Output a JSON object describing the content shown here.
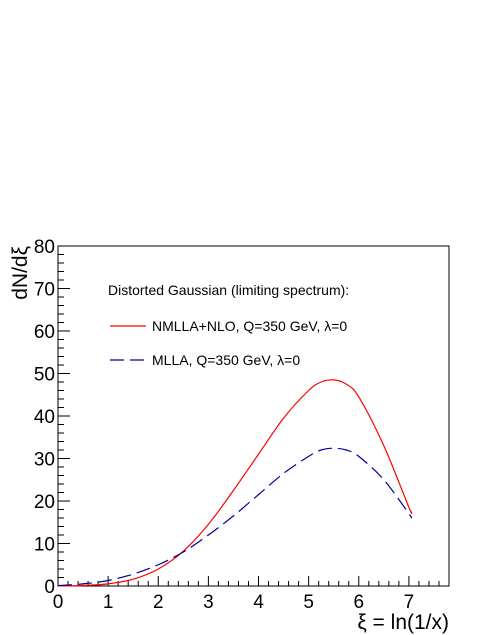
{
  "chart_data": {
    "type": "line",
    "xlabel": "ξ = ln(1/x)",
    "ylabel": "dN/dξ",
    "xlim": [
      0,
      7.8
    ],
    "ylim": [
      0,
      80
    ],
    "x_ticks": [
      "0",
      "1",
      "2",
      "3",
      "4",
      "5",
      "6",
      "7"
    ],
    "y_ticks": [
      "0",
      "10",
      "20",
      "30",
      "40",
      "50",
      "60",
      "70",
      "80"
    ],
    "grid": false,
    "legend_title": "Distorted Gaussian (limiting spectrum):",
    "legend_position": "top-left",
    "series": [
      {
        "name": "NMLLA+NLO, Q=350 GeV, λ=0",
        "color": "#ff0000",
        "line_style": "solid",
        "x": [
          0,
          0.5,
          1.0,
          1.5,
          2.0,
          2.5,
          3.0,
          3.5,
          4.0,
          4.5,
          5.0,
          5.25,
          5.5,
          5.75,
          6.0,
          6.5,
          7.0,
          7.05
        ],
        "y": [
          0.02,
          0.12,
          0.5,
          1.6,
          4.0,
          8.2,
          14.5,
          22.5,
          31.0,
          39.5,
          46.0,
          48.0,
          48.5,
          47.5,
          44.5,
          33.0,
          18.5,
          17.5
        ]
      },
      {
        "name": "MLLA, Q=350 GeV, λ=0",
        "color": "#000099",
        "line_style": "dashed",
        "x": [
          0,
          0.5,
          1.0,
          1.5,
          2.0,
          2.5,
          3.0,
          3.5,
          4.0,
          4.5,
          5.0,
          5.25,
          5.5,
          5.75,
          6.0,
          6.5,
          7.0,
          7.05
        ],
        "y": [
          0.1,
          0.5,
          1.3,
          2.8,
          5.0,
          8.0,
          12.0,
          16.5,
          21.5,
          26.5,
          30.5,
          32.0,
          32.4,
          32.0,
          30.5,
          25.0,
          17.0,
          16.0
        ]
      }
    ]
  }
}
